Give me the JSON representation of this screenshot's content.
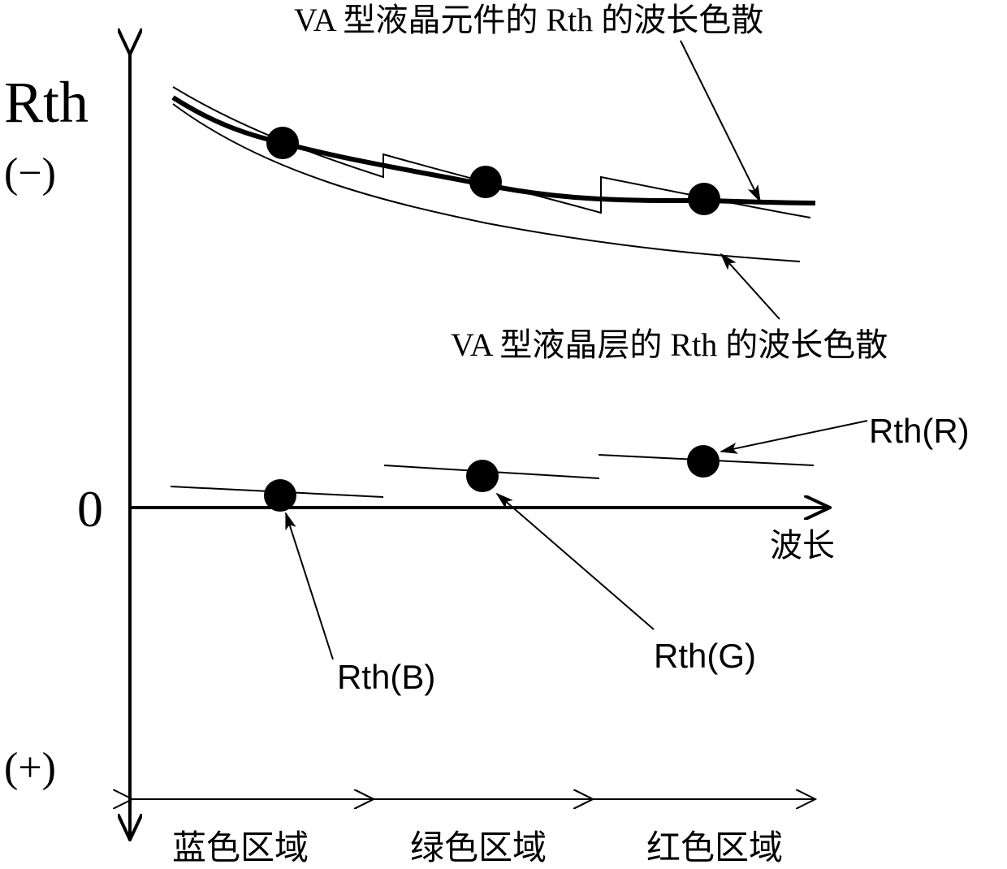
{
  "y_axis": {
    "label": "Rth",
    "negative_label": "(−)",
    "positive_label": "(+)",
    "zero_label": "0"
  },
  "x_axis": {
    "label": "波长"
  },
  "curves": {
    "element_label": "VA 型液晶元件的 Rth 的波长色散",
    "layer_label": "VA 型液晶层的 Rth 的波长色散"
  },
  "points": {
    "rth_b": "Rth(B)",
    "rth_g": "Rth(G)",
    "rth_r": "Rth(R)"
  },
  "regions": [
    {
      "label": "蓝色区域"
    },
    {
      "label": "绿色区域"
    },
    {
      "label": "红色区域"
    }
  ],
  "colors": {
    "ink": "#000000",
    "background": "#ffffff"
  }
}
